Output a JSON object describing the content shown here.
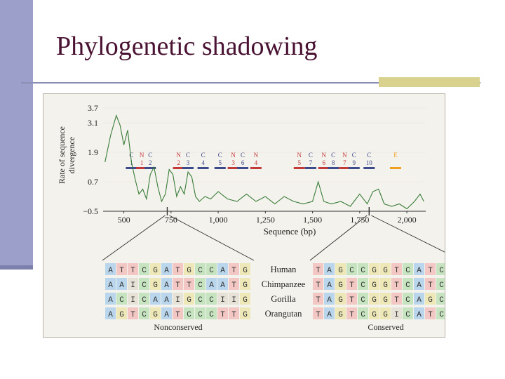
{
  "slide": {
    "title": "Phylogenetic shadowing"
  },
  "colors": {
    "title": "#4a1232",
    "accent_bar": "#9b9fc9",
    "rule_box": "#d8d28e",
    "trace": "#3a7d3a",
    "c_bar": "#3d4a8c",
    "n_bar": "#c23a3a",
    "e_bar": "#f0a020"
  },
  "chart_data": {
    "type": "line",
    "title": "",
    "ylabel": "Rate of sequence divergence",
    "xlabel": "Sequence (bp)",
    "yticks": [
      "3.7",
      "3.1",
      "1.9",
      "0.7",
      "−0.5"
    ],
    "ytick_values": [
      3.7,
      3.1,
      1.9,
      0.7,
      -0.5
    ],
    "xticks": [
      "500",
      "750",
      "1,000",
      "1,250",
      "1,500",
      "1,750",
      "2,000"
    ],
    "xtick_values": [
      500,
      750,
      1000,
      1250,
      1500,
      1750,
      2000
    ],
    "xlim": [
      390,
      2100
    ],
    "ylim": [
      -0.5,
      3.7
    ],
    "series": [
      {
        "x": [
          400,
          430,
          460,
          480,
          500,
          520,
          540,
          560,
          580,
          600,
          620,
          640,
          660,
          680,
          700,
          720,
          740,
          760,
          780,
          800,
          820,
          840,
          860,
          880,
          900,
          930,
          960,
          1000,
          1050,
          1100,
          1150,
          1200,
          1250,
          1300,
          1350,
          1400,
          1450,
          1500,
          1530,
          1560,
          1600,
          1650,
          1700,
          1750,
          1790,
          1820,
          1850,
          1880,
          1920,
          1960,
          2000,
          2040,
          2070,
          2090
        ],
        "y": [
          1.5,
          2.6,
          3.4,
          3.0,
          2.2,
          2.8,
          1.5,
          0.8,
          0.2,
          0.4,
          0.0,
          1.0,
          1.3,
          0.5,
          -0.1,
          0.2,
          1.2,
          1.0,
          0.1,
          0.5,
          0.2,
          1.1,
          0.9,
          0.1,
          -0.1,
          0.1,
          0.0,
          0.3,
          0.0,
          -0.1,
          0.2,
          -0.1,
          0.1,
          -0.2,
          0.1,
          -0.1,
          -0.2,
          -0.1,
          0.7,
          -0.1,
          -0.2,
          -0.1,
          -0.3,
          0.2,
          -0.2,
          0.3,
          0.4,
          -0.2,
          -0.3,
          -0.2,
          -0.4,
          -0.1,
          0.2,
          -0.1
        ]
      }
    ],
    "elements": [
      {
        "type": "C",
        "num": "1",
        "center": 540
      },
      {
        "type": "N",
        "num": "1",
        "center": 595
      },
      {
        "type": "C",
        "num": "2",
        "center": 640
      },
      {
        "type": "N",
        "num": "2",
        "center": 790
      },
      {
        "type": "C",
        "num": "3",
        "center": 840
      },
      {
        "type": "C",
        "num": "4",
        "center": 920
      },
      {
        "type": "C",
        "num": "5",
        "center": 1010
      },
      {
        "type": "N",
        "num": "3",
        "center": 1080
      },
      {
        "type": "C",
        "num": "6",
        "center": 1130
      },
      {
        "type": "N",
        "num": "4",
        "center": 1200
      },
      {
        "type": "N",
        "num": "5",
        "center": 1430
      },
      {
        "type": "C",
        "num": "7",
        "center": 1490
      },
      {
        "type": "N",
        "num": "6",
        "center": 1560
      },
      {
        "type": "C",
        "num": "8",
        "center": 1610
      },
      {
        "type": "N",
        "num": "7",
        "center": 1670
      },
      {
        "type": "C",
        "num": "9",
        "center": 1720
      },
      {
        "type": "C",
        "num": "10",
        "center": 1800
      },
      {
        "type": "E",
        "num": "",
        "center": 1940
      }
    ],
    "windows": [
      {
        "x": 730
      },
      {
        "x": 1800
      }
    ],
    "alignment": {
      "species": [
        "Human",
        "Chimpanzee",
        "Gorilla",
        "Orangutan"
      ],
      "nonconserved": [
        "ATTCGATGCCATG",
        "AAICGATTCAATG",
        "ACICAAIGCCIIG",
        "AGTCGATCCCTTG"
      ],
      "conserved": [
        "TAGCCGGTCATCG",
        "TAGTCGGTCATCG",
        "TAGTCGGTCAGCG",
        "TAGTCGGICATCG"
      ],
      "nonconserved_label": "Nonconserved",
      "conserved_label": "Conserved"
    }
  }
}
